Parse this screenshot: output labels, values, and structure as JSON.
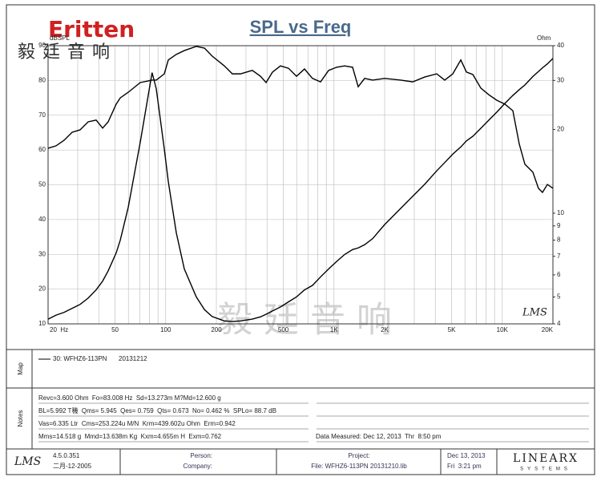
{
  "logo": {
    "brand": "Eritten",
    "chinese": "毅廷音响"
  },
  "watermark": "毅 廷 音 响",
  "chart_data": {
    "type": "line",
    "title": "SPL vs Freq",
    "y_label": "dBSPL",
    "y2_label": "Ohm",
    "software_mark": "LMS",
    "x": [
      20,
      22.3,
      24.9,
      27.8,
      31.0,
      34.6,
      38.6,
      42.2,
      45.5,
      50.8,
      53.7,
      59.9,
      70.6,
      83.0,
      87.9,
      98.1,
      103.6,
      115.6,
      129,
      152,
      170,
      189,
      223,
      249,
      278,
      327,
      366,
      395,
      431,
      481,
      537,
      599,
      668,
      745,
      832,
      929,
      1036,
      1156,
      1290,
      1393,
      1521,
      1697,
      2000,
      2490,
      2937,
      3460,
      4080,
      4550,
      5080,
      5670,
      6130,
      6690,
      7460,
      8320,
      9290,
      10360,
      11560,
      12620,
      13630,
      15210,
      16400,
      17340,
      18540,
      20000
    ],
    "xlim": [
      20,
      20000
    ],
    "xlog": true,
    "xticks": [
      {
        "value": 20,
        "label": "20  Hz"
      },
      50,
      100,
      200,
      500,
      {
        "value": 1000,
        "label": "1K"
      },
      {
        "value": 2000,
        "label": "2K"
      },
      {
        "value": 5000,
        "label": "5K"
      },
      {
        "value": 10000,
        "label": "10K"
      },
      {
        "value": 20000,
        "label": "20K"
      }
    ],
    "xminor": [
      30,
      40,
      60,
      70,
      80,
      90,
      300,
      400,
      600,
      700,
      800,
      900,
      3000,
      4000,
      6000,
      7000,
      8000,
      9000
    ],
    "ylim": [
      10,
      90
    ],
    "yticks": [
      10,
      20,
      30,
      40,
      50,
      60,
      70,
      80,
      90
    ],
    "y2lim": [
      4,
      40
    ],
    "y2log": true,
    "y2ticks": [
      4,
      5,
      6,
      7,
      8,
      9,
      10,
      20,
      30,
      40
    ],
    "grid": true,
    "series": [
      {
        "color": "#000000",
        "values": [
          60.5,
          61.2,
          62.8,
          65.1,
          65.8,
          68.1,
          68.6,
          66.3,
          68.1,
          73.2,
          75.0,
          76.6,
          79.4,
          80.1,
          80.1,
          81.9,
          85.9,
          87.5,
          88.6,
          89.8,
          89.3,
          87.0,
          84.2,
          81.9,
          81.9,
          82.9,
          81.2,
          79.4,
          82.4,
          84.2,
          83.5,
          81.2,
          83.3,
          80.6,
          79.6,
          82.9,
          83.8,
          84.2,
          83.8,
          78.2,
          80.6,
          80.1,
          80.6,
          80.1,
          79.6,
          81.0,
          81.9,
          80.1,
          81.9,
          85.9,
          82.4,
          81.7,
          77.8,
          75.9,
          74.3,
          73.2,
          71.3,
          61.7,
          55.9,
          53.6,
          49.0,
          47.8,
          50.1,
          49.0
        ]
      },
      {
        "color": "#000000",
        "axis": "y2",
        "values": [
          4.16,
          4.3,
          4.4,
          4.55,
          4.7,
          4.95,
          5.3,
          5.7,
          6.2,
          7.2,
          8.0,
          10.5,
          18,
          32,
          28,
          17,
          13,
          8.5,
          6.3,
          5.0,
          4.5,
          4.25,
          4.1,
          4.08,
          4.1,
          4.16,
          4.24,
          4.33,
          4.45,
          4.6,
          4.8,
          5.0,
          5.3,
          5.5,
          5.9,
          6.3,
          6.7,
          7.1,
          7.4,
          7.5,
          7.7,
          8.1,
          9.1,
          10.4,
          11.5,
          12.7,
          14.2,
          15.2,
          16.3,
          17.3,
          18.2,
          18.9,
          20.2,
          21.6,
          23.1,
          24.8,
          26.5,
          27.8,
          28.9,
          31,
          32.3,
          33.3,
          34.4,
          36.0
        ]
      }
    ]
  },
  "map": {
    "title": "Map",
    "legend": "30: WFHZ6-113PN",
    "date": "20131212"
  },
  "notes": {
    "title": "Notes",
    "lines": [
      "Revc=3.600 Ohm  Fo=83.008 Hz  Sd=13.273m M?Md=12.600 g",
      "BL=5.992 T穖  Qms= 5.945  Qes= 0.759  Qts= 0.673  No= 0.462 %  SPLo= 88.7 dB",
      "Vas=6.335 Ltr  Cms=253.224u M/N  Krm=439.602u Ohm  Erm=0.942",
      "Mms=14.518 g  Mmd=13.638m Kg  Kxm=4.655m H  Exm=0.762"
    ],
    "measured": "Data Measured: Dec 12, 2013  Thr  8:50 pm"
  },
  "footer": {
    "logo": "LMS",
    "version": "4.5.0.351",
    "build_date": "二月-12-2005",
    "person": "Person:",
    "company": "Company:",
    "project": "Project:",
    "file": "File: WFHZ6-113PN 20131210.lib",
    "date": "Dec 13, 2013",
    "time": "Fri  3:21 pm",
    "brand": "LINEARX",
    "brand_sub": "SYSTEMS"
  }
}
